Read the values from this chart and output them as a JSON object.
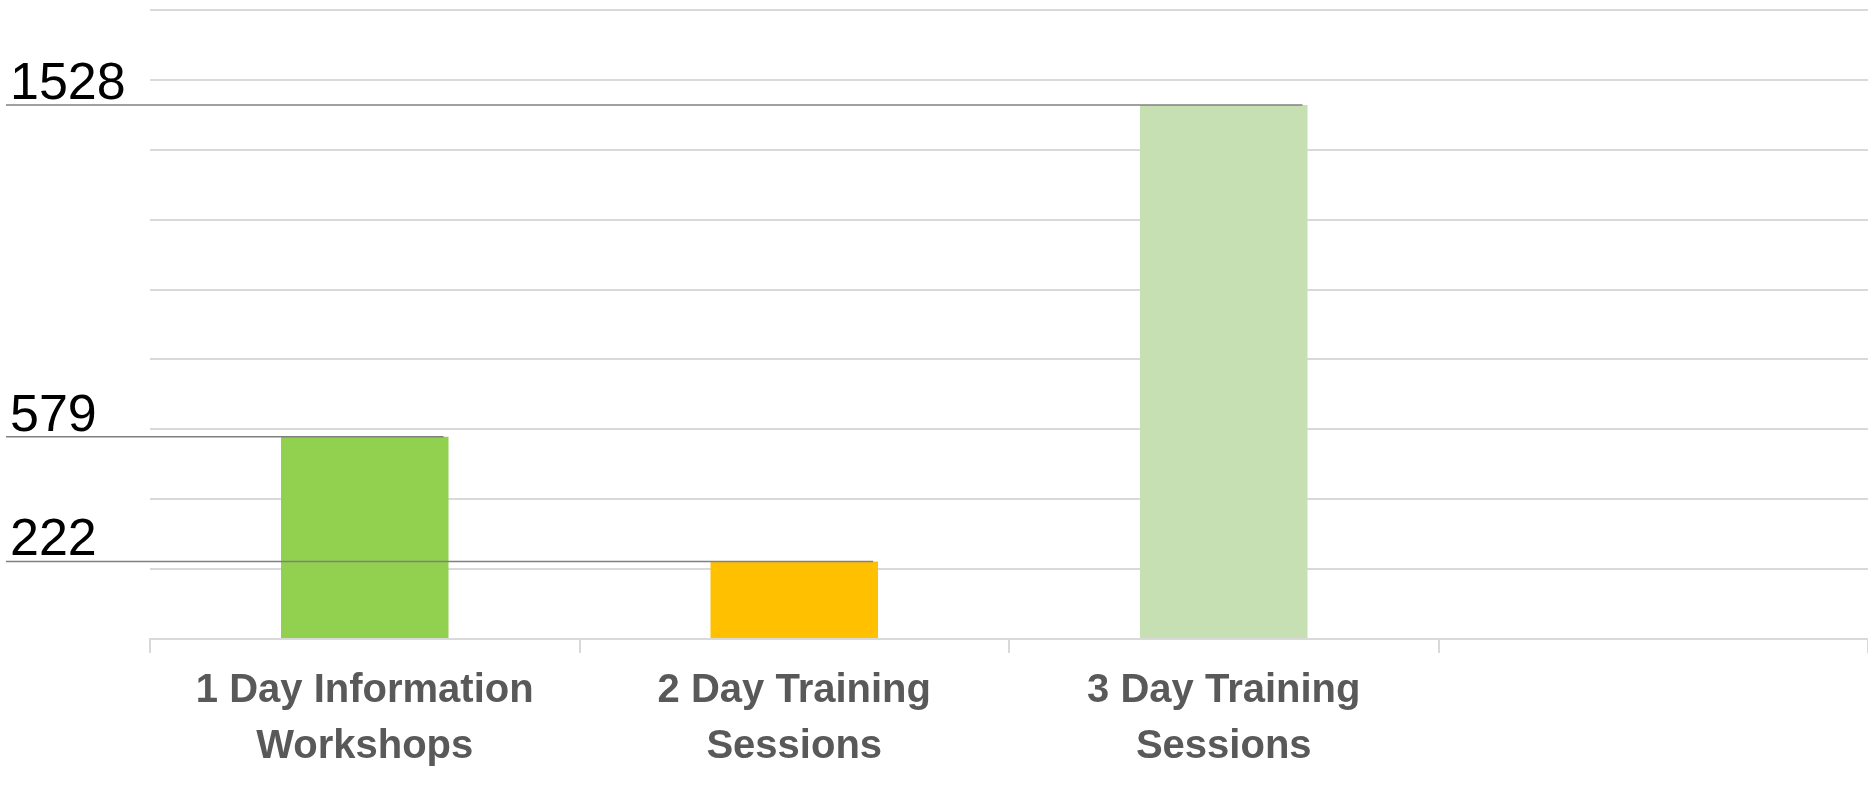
{
  "chart_data": {
    "type": "bar",
    "categories": [
      "1 Day Information Workshops",
      "2 Day Training Sessions",
      "3 Day Training Sessions",
      null
    ],
    "values": [
      579,
      222,
      1528,
      null
    ],
    "colors": [
      "#92d050",
      "#ffc000",
      "#c6e0b4",
      "#c6e0b4"
    ],
    "ylim": [
      0,
      1800
    ],
    "yticks": [
      {
        "value": 0,
        "label": null
      },
      {
        "value": 200,
        "label": null
      },
      {
        "value": 400,
        "label": null
      },
      {
        "value": 600,
        "label": null
      },
      {
        "value": 800,
        "label": null
      },
      {
        "value": 1000,
        "label": null
      },
      {
        "value": 1200,
        "label": null
      },
      {
        "value": 1400,
        "label": null
      },
      {
        "value": 1600,
        "label": null
      },
      {
        "value": 1800,
        "label": null
      }
    ],
    "ref_lines": [
      {
        "axis": "y",
        "value": 1528,
        "label": "1528",
        "color": "#808080"
      },
      {
        "axis": "y",
        "value": 579,
        "label": "579",
        "color": "#808080"
      },
      {
        "axis": "y",
        "value": 222,
        "label": "222",
        "color": "#808080"
      }
    ],
    "grid": "y",
    "tick_labels": "x",
    "legend": false
  }
}
